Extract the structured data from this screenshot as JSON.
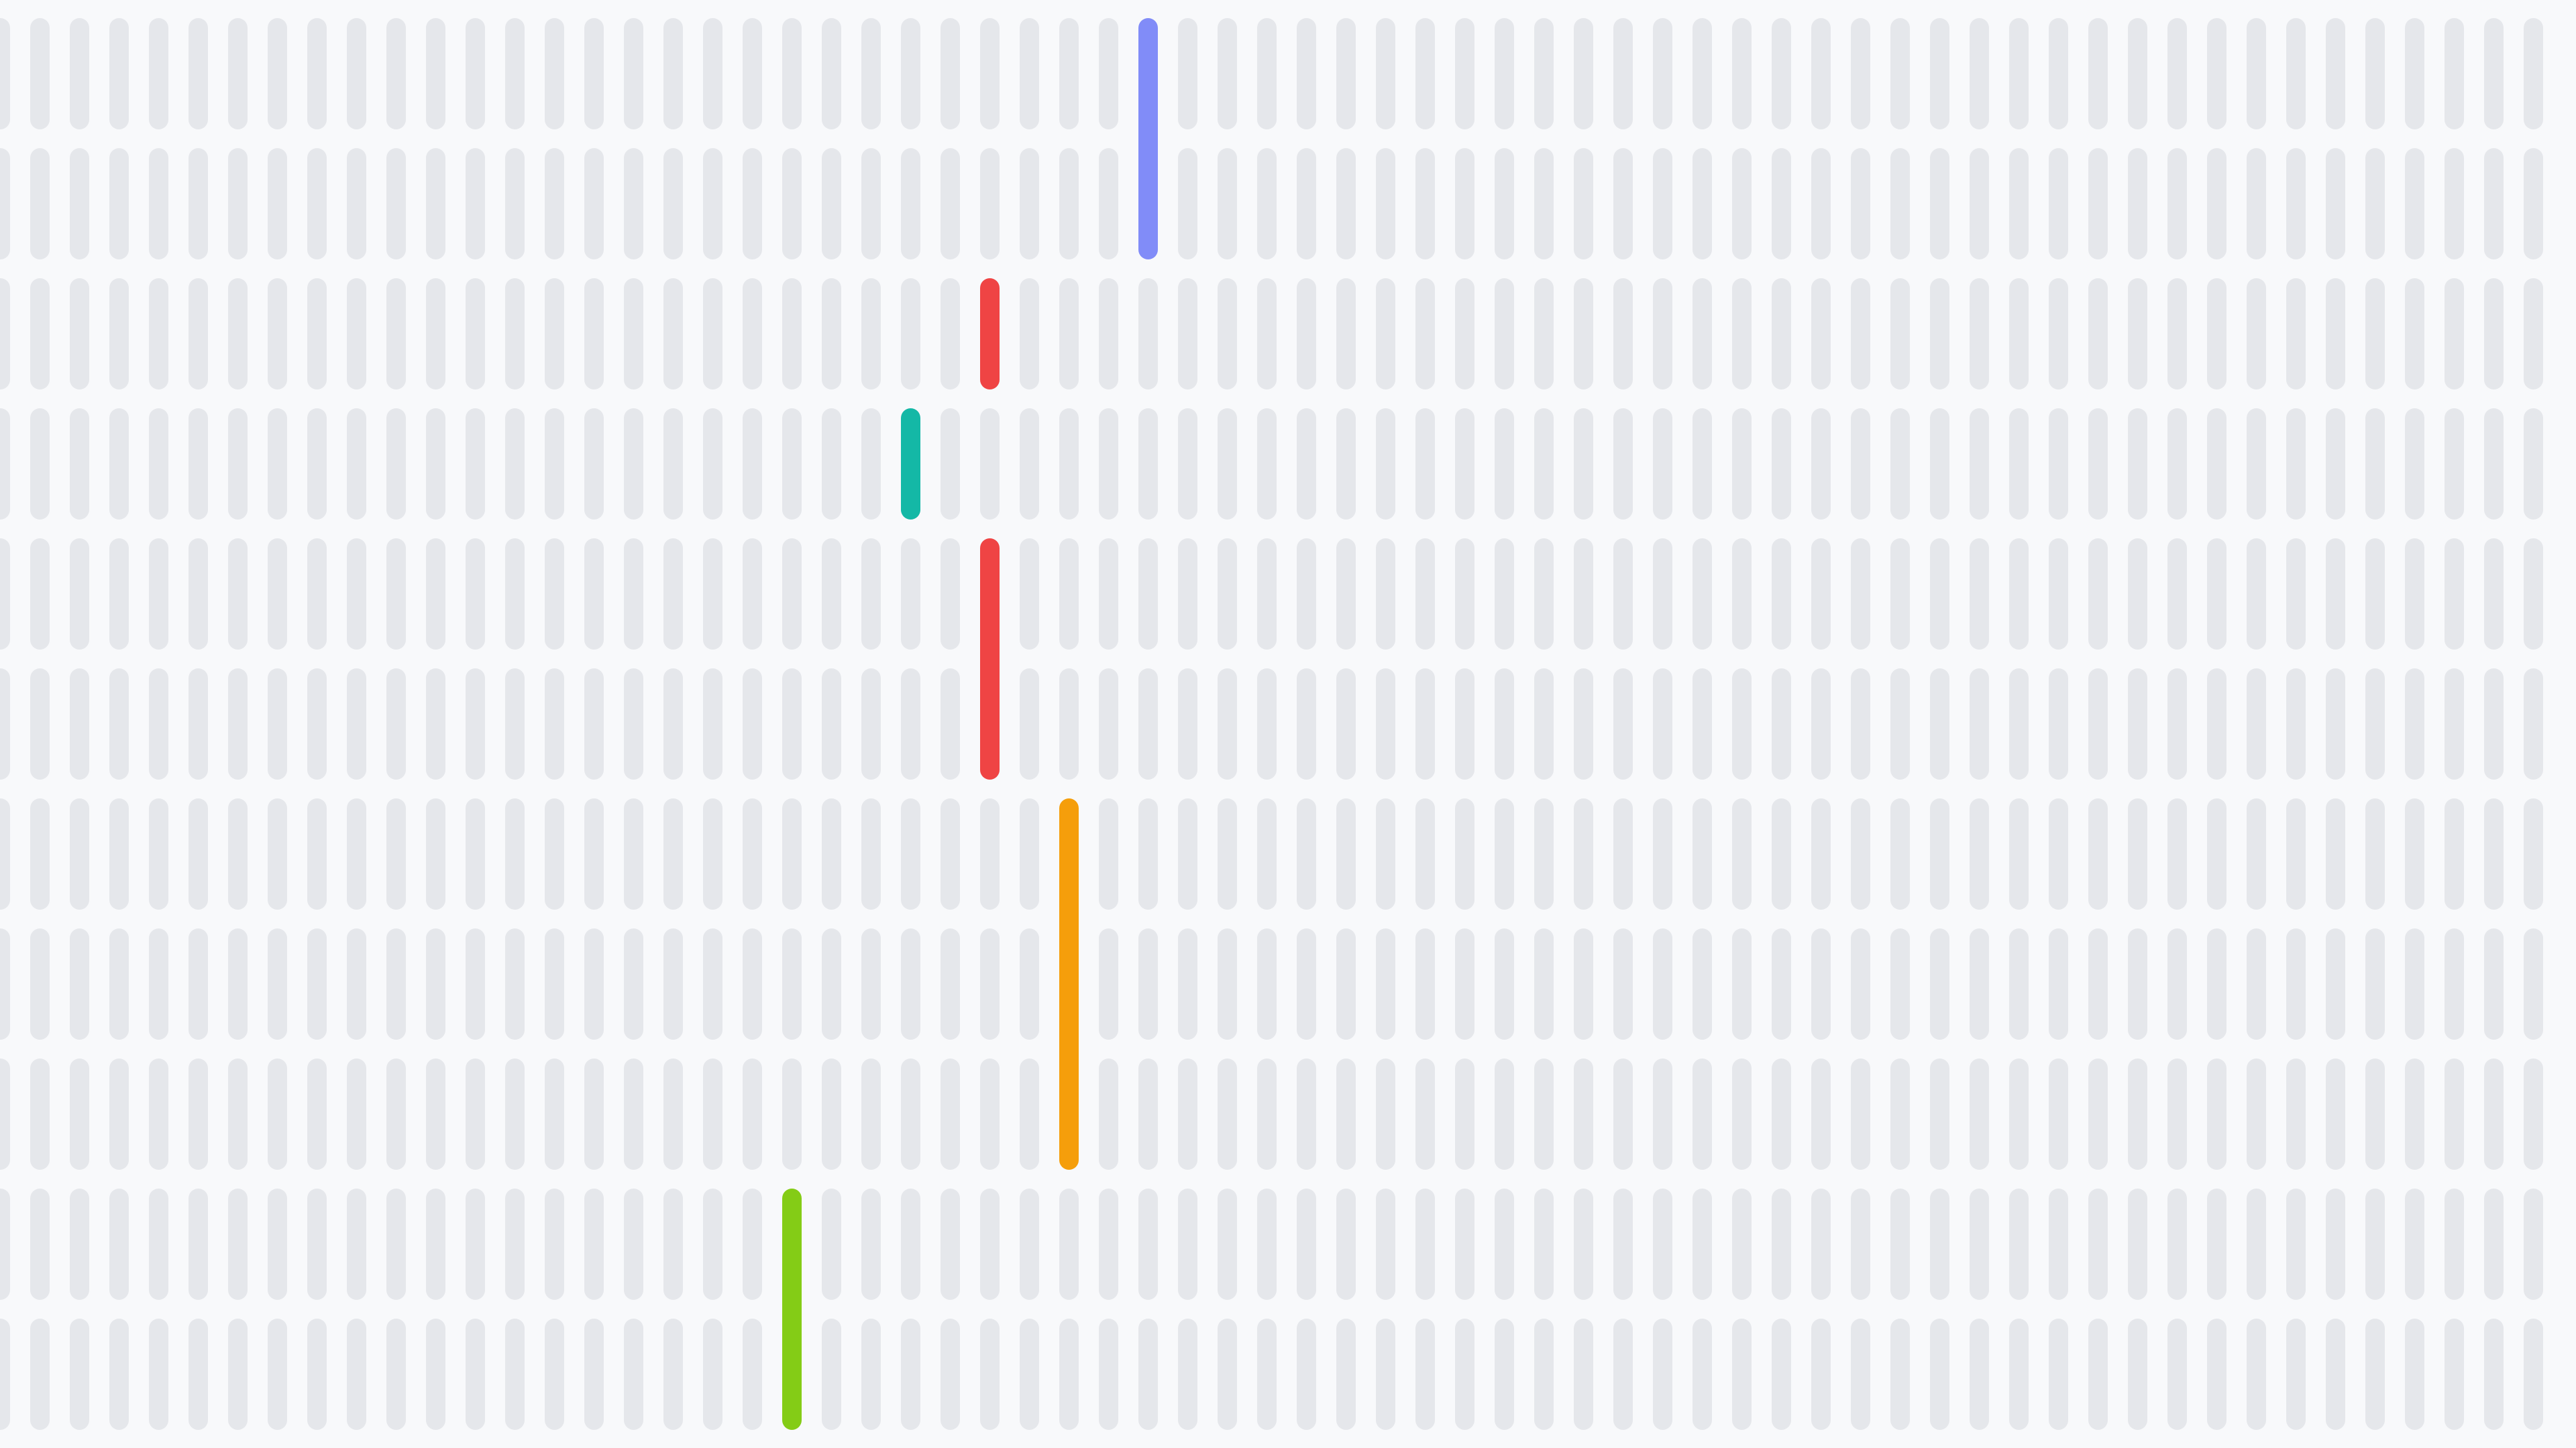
{
  "colors": {
    "background": "#f8f9fb",
    "bar_default": "#e5e7eb"
  },
  "grid": {
    "columns": 65,
    "rows": 11
  },
  "highlights": [
    {
      "name": "highlight-indigo",
      "color": "#818cf8",
      "column": 29,
      "row_start": 0,
      "row_span": 2
    },
    {
      "name": "highlight-red-short",
      "color": "#ef4444",
      "column": 25,
      "row_start": 2,
      "row_span": 1
    },
    {
      "name": "highlight-teal",
      "color": "#14b8a6",
      "column": 23,
      "row_start": 3,
      "row_span": 1
    },
    {
      "name": "highlight-red-long",
      "color": "#ef4444",
      "column": 25,
      "row_start": 4,
      "row_span": 2
    },
    {
      "name": "highlight-amber",
      "color": "#f59e0b",
      "column": 27,
      "row_start": 6,
      "row_span": 3
    },
    {
      "name": "highlight-lime",
      "color": "#84cc16",
      "column": 20,
      "row_start": 9,
      "row_span": 2
    }
  ]
}
